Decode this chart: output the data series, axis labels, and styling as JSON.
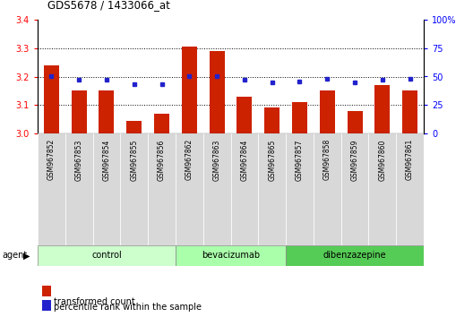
{
  "title": "GDS5678 / 1433066_at",
  "samples": [
    "GSM967852",
    "GSM967853",
    "GSM967854",
    "GSM967855",
    "GSM967856",
    "GSM967862",
    "GSM967863",
    "GSM967864",
    "GSM967865",
    "GSM967857",
    "GSM967858",
    "GSM967859",
    "GSM967860",
    "GSM967861"
  ],
  "bar_values": [
    3.24,
    3.15,
    3.15,
    3.045,
    3.07,
    3.305,
    3.29,
    3.13,
    3.09,
    3.11,
    3.15,
    3.08,
    3.17,
    3.15
  ],
  "blue_values": [
    50,
    47,
    47,
    43,
    43,
    50,
    50,
    47,
    45,
    46,
    48,
    45,
    47,
    48
  ],
  "group_labels": [
    "control",
    "bevacizumab",
    "dibenzazepine"
  ],
  "group_starts": [
    0,
    5,
    9
  ],
  "group_ends": [
    5,
    9,
    14
  ],
  "group_colors": [
    "#ccffcc",
    "#aaffaa",
    "#55cc55"
  ],
  "ylim_left": [
    3.0,
    3.4
  ],
  "ylim_right": [
    0,
    100
  ],
  "yticks_left": [
    3.0,
    3.1,
    3.2,
    3.3,
    3.4
  ],
  "yticks_right": [
    0,
    25,
    50,
    75,
    100
  ],
  "bar_color": "#cc2200",
  "dot_color": "#2222cc",
  "bar_bottom": 3.0,
  "grid_dotted_at": [
    3.1,
    3.2,
    3.3
  ]
}
